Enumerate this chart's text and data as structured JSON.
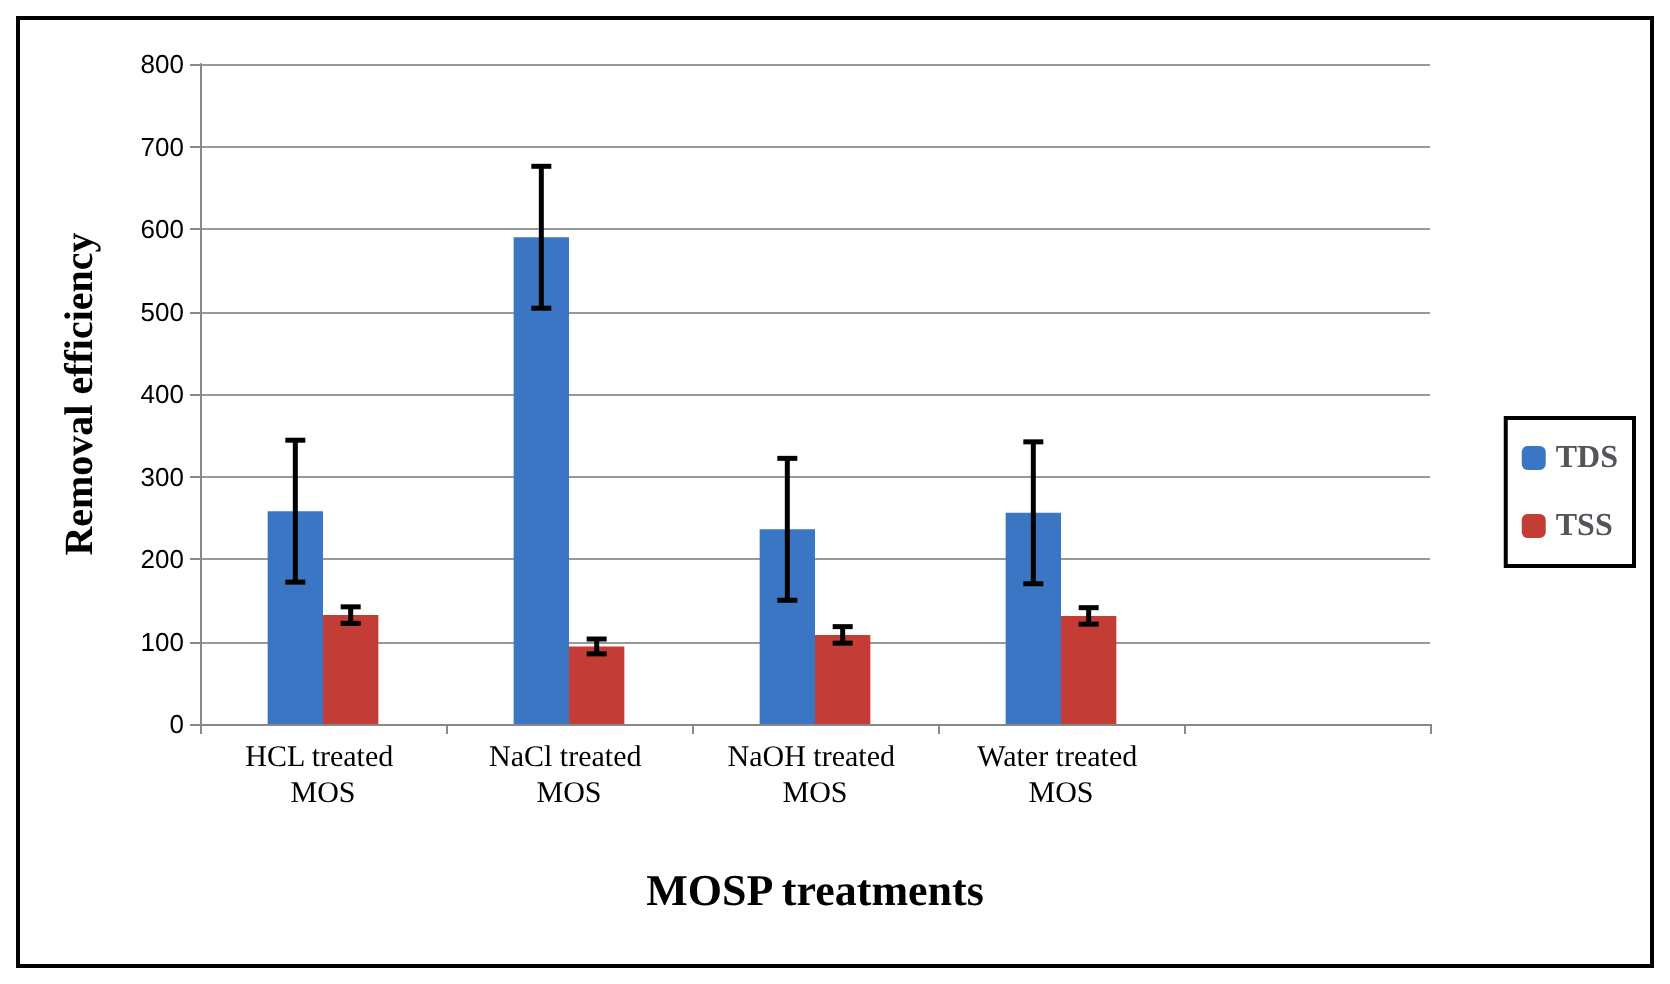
{
  "chart_data": {
    "type": "bar",
    "xlabel": "MOSP treatments",
    "ylabel": "Removal efficiency",
    "categories": [
      "HCL treated MOS",
      "NaCl treated MOS",
      "NaOH treated MOS",
      "Water treated MOS",
      null
    ],
    "series": [
      {
        "name": "TDS",
        "color": "#3b76c4",
        "values": [
          258,
          590,
          236,
          256,
          null
        ],
        "errors": [
          86,
          86,
          86,
          86,
          null
        ]
      },
      {
        "name": "TSS",
        "color": "#c43c36",
        "values": [
          132,
          94,
          108,
          131,
          null
        ],
        "errors": [
          10,
          9,
          10,
          10,
          null
        ]
      }
    ],
    "ylim": [
      0,
      800
    ],
    "yticks": [
      0,
      100,
      200,
      300,
      400,
      500,
      600,
      700,
      800
    ],
    "grid": "y",
    "legend": "right"
  }
}
